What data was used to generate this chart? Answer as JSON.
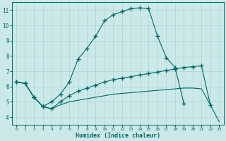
{
  "xlabel": "Humidex (Indice chaleur)",
  "background_color": "#cce9e9",
  "grid_color": "#aad4d4",
  "line_color": "#006666",
  "xlim": [
    -0.5,
    23.5
  ],
  "ylim": [
    3.5,
    11.5
  ],
  "xticks": [
    0,
    1,
    2,
    3,
    4,
    5,
    6,
    7,
    8,
    9,
    10,
    11,
    12,
    13,
    14,
    15,
    16,
    17,
    18,
    19,
    20,
    21,
    22,
    23
  ],
  "yticks": [
    4,
    5,
    6,
    7,
    8,
    9,
    10,
    11
  ],
  "lines": [
    {
      "x": [
        0,
        1,
        2,
        3,
        4,
        5,
        6,
        7,
        8,
        9,
        10,
        11,
        12,
        13,
        14,
        15,
        16,
        17,
        18,
        19
      ],
      "y": [
        6.3,
        6.2,
        5.3,
        4.7,
        5.0,
        5.5,
        6.3,
        7.8,
        8.5,
        9.3,
        10.3,
        10.7,
        10.9,
        11.1,
        11.15,
        11.1,
        9.3,
        7.9,
        7.25,
        4.9
      ],
      "has_markers": true
    },
    {
      "x": [
        0,
        1,
        2,
        3,
        4,
        5,
        6,
        7,
        8,
        9,
        10,
        11,
        12,
        13,
        14,
        15,
        16,
        17,
        18,
        19,
        20,
        21,
        22
      ],
      "y": [
        6.3,
        6.2,
        5.3,
        4.7,
        4.55,
        5.0,
        5.4,
        5.7,
        5.9,
        6.1,
        6.3,
        6.45,
        6.55,
        6.65,
        6.75,
        6.85,
        6.95,
        7.05,
        7.15,
        7.25,
        7.3,
        7.35,
        4.8
      ],
      "has_markers": true
    },
    {
      "x": [
        0,
        1,
        2,
        3,
        4,
        5,
        6,
        7,
        8,
        9,
        10,
        11,
        12,
        13,
        14,
        15,
        16,
        17,
        18,
        19,
        20,
        21,
        22,
        23
      ],
      "y": [
        6.3,
        6.2,
        5.3,
        4.7,
        4.55,
        4.8,
        5.0,
        5.1,
        5.2,
        5.3,
        5.4,
        5.5,
        5.55,
        5.6,
        5.65,
        5.7,
        5.75,
        5.8,
        5.85,
        5.9,
        5.9,
        5.85,
        4.8,
        3.7
      ],
      "has_markers": false
    }
  ]
}
